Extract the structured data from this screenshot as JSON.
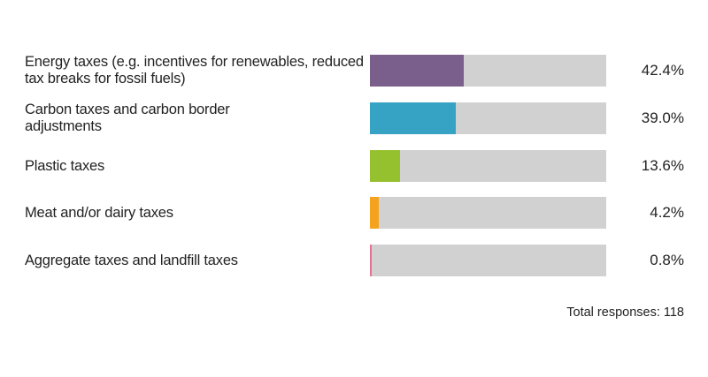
{
  "chart_data": {
    "type": "bar",
    "orientation": "horizontal",
    "categories": [
      "Energy taxes (e.g. incentives for renewables, reduced tax breaks for fossil fuels)",
      "Carbon taxes and carbon border adjustments",
      "Plastic taxes",
      "Meat and/or dairy taxes",
      "Aggregate taxes and landfill taxes"
    ],
    "values": [
      42.4,
      39.0,
      13.6,
      4.2,
      0.8
    ],
    "value_labels": [
      "42.4%",
      "39.0%",
      "13.6%",
      "4.2%",
      "0.8%"
    ],
    "colors": [
      "#7a5e8c",
      "#36a2c4",
      "#96c12e",
      "#f5a31f",
      "#e8718f"
    ],
    "track_color": "#d1d1d1",
    "xlim": [
      0,
      107
    ],
    "unit": "%",
    "grid": false,
    "footnote": "Total responses: 118"
  }
}
